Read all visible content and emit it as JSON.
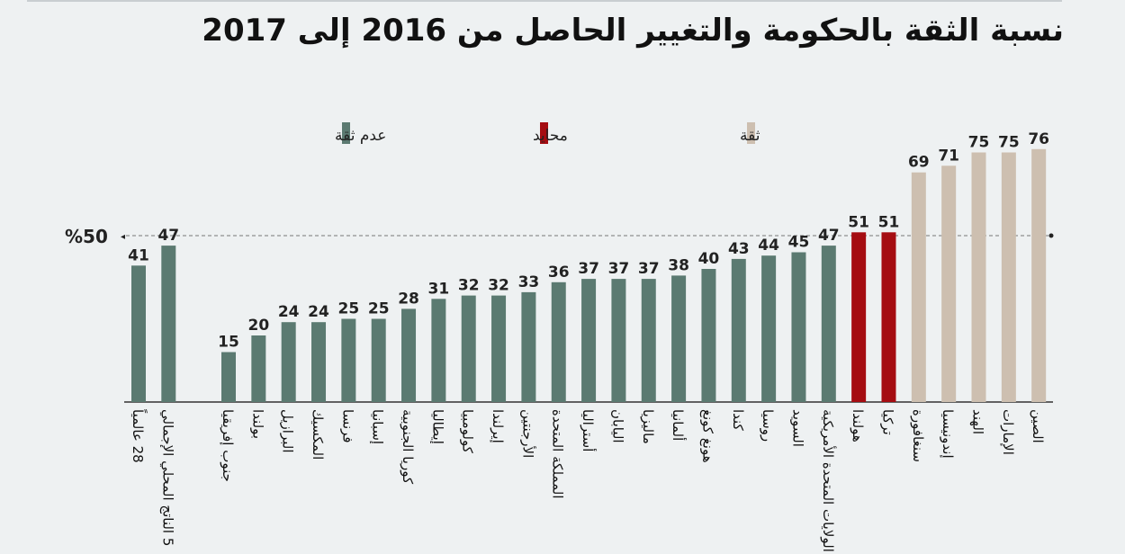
{
  "chart_data": {
    "type": "bar",
    "title": "نسبة الثقة بالحكومة والتغيير الحاصل من 2016 إلى 2017",
    "reference_line": {
      "value": 50,
      "label": "%50"
    },
    "ylim": [
      0,
      80
    ],
    "legend": [
      {
        "label": "ثقة",
        "color": "#cdbfb0"
      },
      {
        "label": "محايد",
        "color": "#a50d12"
      },
      {
        "label": "عدم ثقة",
        "color": "#5b7a71"
      }
    ],
    "legend_position": "top",
    "categories": [
      "28 عالمياً",
      "5 الناتج المحلي الإجمالي",
      "جنوب إفريقيا",
      "بولندا",
      "البرازيل",
      "المكسيك",
      "فرنسا",
      "إسبانيا",
      "كوريا الجنوبية",
      "إيطاليا",
      "كولومبيا",
      "إيرلندا",
      "الأرجنتين",
      "المملكة المتحدة",
      "أستراليا",
      "اليابان",
      "ماليزيا",
      "ألمانيا",
      "هونغ كونغ",
      "كندا",
      "روسيا",
      "السويد",
      "الولايات المتحدة الأمريكية",
      "هولندا",
      "تركيا",
      "سنغافورة",
      "إندونيسيا",
      "الهند",
      "الإمارات",
      "الصين"
    ],
    "values": [
      41,
      47,
      15,
      20,
      24,
      24,
      25,
      25,
      28,
      31,
      32,
      32,
      33,
      36,
      37,
      37,
      37,
      38,
      40,
      43,
      44,
      45,
      47,
      51,
      51,
      69,
      71,
      75,
      75,
      76
    ],
    "groups": [
      2,
      2,
      2,
      2,
      2,
      2,
      2,
      2,
      2,
      2,
      2,
      2,
      2,
      2,
      2,
      2,
      2,
      2,
      2,
      2,
      2,
      2,
      2,
      1,
      1,
      0,
      0,
      0,
      0,
      0
    ]
  }
}
